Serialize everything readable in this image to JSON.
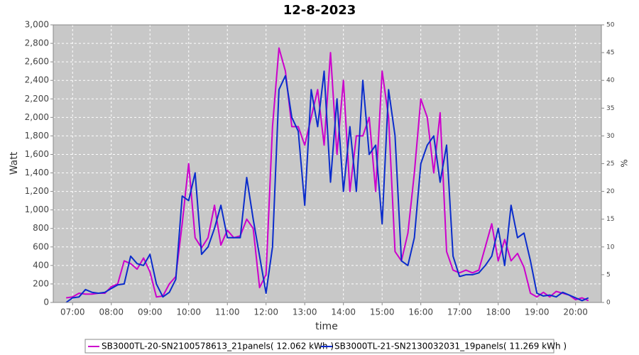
{
  "chart_data": {
    "type": "line",
    "title": "12-8-2023",
    "xlabel": "time",
    "ylabel": "Watt",
    "y2label": "%",
    "x": [
      "06:50",
      "07:00",
      "07:10",
      "07:20",
      "07:30",
      "07:40",
      "07:50",
      "08:00",
      "08:10",
      "08:20",
      "08:30",
      "08:40",
      "08:50",
      "09:00",
      "09:10",
      "09:20",
      "09:30",
      "09:40",
      "09:50",
      "10:00",
      "10:10",
      "10:20",
      "10:30",
      "10:40",
      "10:50",
      "11:00",
      "11:10",
      "11:20",
      "11:30",
      "11:40",
      "11:50",
      "12:00",
      "12:10",
      "12:20",
      "12:30",
      "12:40",
      "12:50",
      "13:00",
      "13:10",
      "13:20",
      "13:30",
      "13:40",
      "13:50",
      "14:00",
      "14:10",
      "14:20",
      "14:30",
      "14:40",
      "14:50",
      "15:00",
      "15:10",
      "15:20",
      "15:30",
      "15:40",
      "15:50",
      "16:00",
      "16:10",
      "16:20",
      "16:30",
      "16:40",
      "16:50",
      "17:00",
      "17:10",
      "17:20",
      "17:30",
      "17:40",
      "17:50",
      "18:00",
      "18:10",
      "18:20",
      "18:30",
      "18:40",
      "18:50",
      "19:00",
      "19:10",
      "19:20",
      "19:30",
      "19:40",
      "19:50",
      "20:00",
      "20:10",
      "20:20"
    ],
    "series": [
      {
        "name": "SB3000TL-20-SN2100578613_21panels( 12.062 kWh )",
        "color": "#cc00cc",
        "values": [
          50,
          60,
          100,
          90,
          90,
          100,
          100,
          170,
          200,
          450,
          420,
          360,
          480,
          330,
          60,
          70,
          200,
          280,
          850,
          1500,
          700,
          590,
          700,
          1050,
          620,
          780,
          700,
          720,
          900,
          800,
          160,
          300,
          1900,
          2750,
          2500,
          1900,
          1900,
          1700,
          2000,
          2300,
          1700,
          2700,
          1600,
          2400,
          1200,
          1800,
          1800,
          2000,
          1200,
          2500,
          2000,
          550,
          450,
          750,
          1400,
          2200,
          2000,
          1400,
          2050,
          550,
          350,
          320,
          350,
          320,
          350,
          600,
          850,
          450,
          680,
          450,
          530,
          380,
          100,
          60,
          110,
          60,
          120,
          100,
          80,
          30,
          50,
          20
        ]
      },
      {
        "name": "SB3000TL-21-SN2130032031_19panels( 11.269 kWh )",
        "color": "#0a2ccc",
        "values": [
          0,
          50,
          60,
          140,
          110,
          100,
          110,
          150,
          190,
          200,
          500,
          420,
          400,
          520,
          200,
          60,
          110,
          250,
          1150,
          1100,
          1400,
          520,
          600,
          800,
          1050,
          700,
          700,
          700,
          1350,
          900,
          500,
          100,
          600,
          2300,
          2450,
          2000,
          1850,
          1050,
          2300,
          1900,
          2500,
          1300,
          2200,
          1200,
          1900,
          1200,
          2400,
          1600,
          1700,
          850,
          2300,
          1800,
          450,
          400,
          700,
          1500,
          1700,
          1800,
          1300,
          1700,
          500,
          280,
          300,
          300,
          320,
          400,
          500,
          800,
          400,
          1050,
          700,
          750,
          450,
          100,
          70,
          80,
          60,
          110,
          80,
          50,
          20,
          50
        ]
      }
    ],
    "xlim": [
      "06:30",
      "20:40"
    ],
    "xticks": [
      "07:00",
      "08:00",
      "09:00",
      "10:00",
      "11:00",
      "12:00",
      "13:00",
      "14:00",
      "15:00",
      "16:00",
      "17:00",
      "18:00",
      "19:00",
      "20:00"
    ],
    "ylim": [
      0,
      3000
    ],
    "yticks": [
      0,
      200,
      400,
      600,
      800,
      {
        "value": 1000,
        "label": "1,000"
      },
      {
        "value": 1200,
        "label": "1,200"
      },
      {
        "value": 1400,
        "label": "1,400"
      },
      {
        "value": 1600,
        "label": "1,600"
      },
      {
        "value": 1800,
        "label": "1,800"
      },
      {
        "value": 2000,
        "label": "2,000"
      },
      {
        "value": 2200,
        "label": "2,200"
      },
      {
        "value": 2400,
        "label": "2,400"
      },
      {
        "value": 2600,
        "label": "2,600"
      },
      {
        "value": 2800,
        "label": "2,800"
      },
      {
        "value": 3000,
        "label": "3,000"
      }
    ],
    "y2lim": [
      0,
      50
    ],
    "y2ticks": [
      0,
      5,
      10,
      15,
      20,
      25,
      30,
      35,
      40,
      45,
      50
    ],
    "grid": true
  }
}
